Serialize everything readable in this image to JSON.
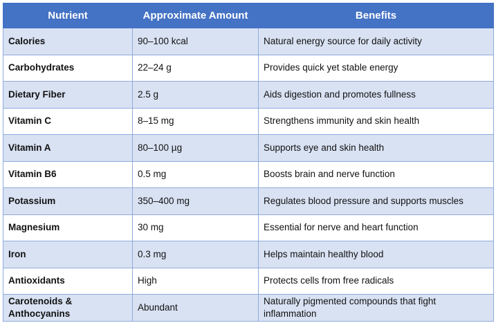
{
  "header": {
    "col1": "Nutrient",
    "col2": "Approximate Amount",
    "col3": "Benefits"
  },
  "rows": [
    {
      "nutrient": "Calories",
      "amount": "90–100 kcal",
      "benefit": "Natural energy source for daily activity"
    },
    {
      "nutrient": "Carbohydrates",
      "amount": "22–24 g",
      "benefit": "Provides quick yet stable energy"
    },
    {
      "nutrient": "Dietary Fiber",
      "amount": "2.5 g",
      "benefit": "Aids digestion and promotes fullness"
    },
    {
      "nutrient": "Vitamin C",
      "amount": "8–15 mg",
      "benefit": "Strengthens immunity and skin health"
    },
    {
      "nutrient": "Vitamin A",
      "amount": "80–100 µg",
      "benefit": "Supports eye and skin health"
    },
    {
      "nutrient": "Vitamin B6",
      "amount": "0.5 mg",
      "benefit": "Boosts brain and nerve function"
    },
    {
      "nutrient": "Potassium",
      "amount": "350–400 mg",
      "benefit": "Regulates blood pressure and supports muscles"
    },
    {
      "nutrient": "Magnesium",
      "amount": "30 mg",
      "benefit": "Essential for nerve and heart function"
    },
    {
      "nutrient": "Iron",
      "amount": "0.3 mg",
      "benefit": "Helps maintain healthy blood"
    },
    {
      "nutrient": "Antioxidants",
      "amount": "High",
      "benefit": "Protects cells from free radicals"
    },
    {
      "nutrient": "Carotenoids & Anthocyanins",
      "amount": "Abundant",
      "benefit": "Naturally pigmented compounds that fight inflammation"
    }
  ]
}
